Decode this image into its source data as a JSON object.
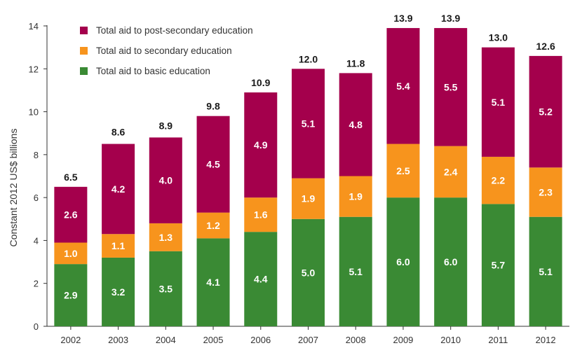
{
  "chart_data": {
    "type": "bar",
    "stacked": true,
    "title": "",
    "xlabel": "",
    "ylabel": "Constant 2012 US$ billions",
    "ylim": [
      0,
      14
    ],
    "yticks": [
      0,
      2,
      4,
      6,
      8,
      10,
      12,
      14
    ],
    "grid": false,
    "legend_position": "top-left",
    "categories": [
      "2002",
      "2003",
      "2004",
      "2005",
      "2006",
      "2007",
      "2008",
      "2009",
      "2010",
      "2011",
      "2012"
    ],
    "series": [
      {
        "name": "Total aid to basic education",
        "color": "#3a8a34",
        "values": [
          2.9,
          3.2,
          3.5,
          4.1,
          4.4,
          5.0,
          5.1,
          6.0,
          6.0,
          5.7,
          5.1
        ]
      },
      {
        "name": "Total aid to secondary education",
        "color": "#f7941d",
        "values": [
          1.0,
          1.1,
          1.3,
          1.2,
          1.6,
          1.9,
          1.9,
          2.5,
          2.4,
          2.2,
          2.3
        ]
      },
      {
        "name": "Total aid to post-secondary education",
        "color": "#a4004c",
        "values": [
          2.6,
          4.2,
          4.0,
          4.5,
          4.9,
          5.1,
          4.8,
          5.4,
          5.5,
          5.1,
          5.2
        ]
      }
    ],
    "totals": [
      6.5,
      8.6,
      8.9,
      9.8,
      10.9,
      12.0,
      11.8,
      13.9,
      13.9,
      13.0,
      12.6
    ],
    "legend_order": [
      2,
      1,
      0
    ]
  }
}
